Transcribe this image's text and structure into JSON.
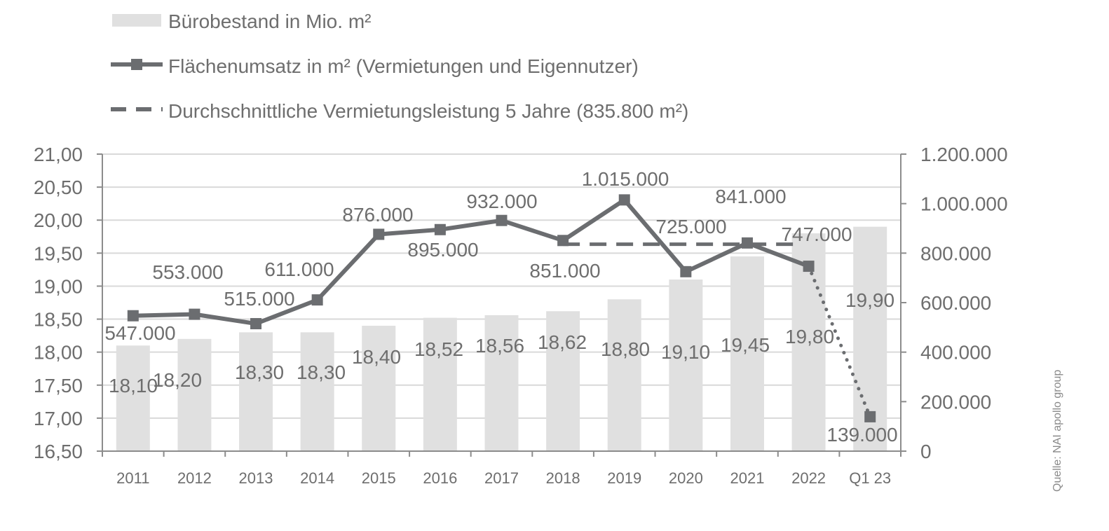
{
  "chart_data": {
    "type": "bar+line",
    "categories": [
      "2011",
      "2012",
      "2013",
      "2014",
      "2015",
      "2016",
      "2017",
      "2018",
      "2019",
      "2020",
      "2021",
      "2022",
      "Q1 23"
    ],
    "bar_series": {
      "name": "Bürobestand in Mio. m²",
      "values": [
        18.1,
        18.2,
        18.3,
        18.3,
        18.4,
        18.52,
        18.56,
        18.62,
        18.8,
        19.1,
        19.45,
        19.8,
        19.9
      ],
      "labels": [
        "18,10",
        "18,20",
        "18,30",
        "18,30",
        "18,40",
        "18,52",
        "18,56",
        "18,62",
        "18,80",
        "19,10",
        "19,45",
        "19,80",
        "19,90"
      ],
      "axis": "left",
      "color": "#e0e0e0"
    },
    "line_series": {
      "name": "Flächenumsatz in m² (Vermietungen und Eigennutzer)",
      "values": [
        547000,
        553000,
        515000,
        611000,
        876000,
        895000,
        932000,
        851000,
        1015000,
        725000,
        841000,
        747000,
        139000
      ],
      "labels": [
        "547.000",
        "553.000",
        "515.000",
        "611.000",
        "876.000",
        "895.000",
        "932.000",
        "851.000",
        "1.015.000",
        "725.000",
        "841.000",
        "747.000",
        "139.000"
      ],
      "axis": "right",
      "color": "#6b6d70",
      "dotted_from_index": 11
    },
    "avg_series": {
      "name": "Durchschnittliche Vermietungsleistung 5 Jahre (835.800 m²)",
      "value": 835800,
      "from_index": 7,
      "to_index": 11,
      "color": "#6b6d70"
    },
    "y_left": {
      "min": 16.5,
      "max": 21.0,
      "ticks": [
        16.5,
        17.0,
        17.5,
        18.0,
        18.5,
        19.0,
        19.5,
        20.0,
        20.5,
        21.0
      ],
      "tick_labels": [
        "16,50",
        "17,00",
        "17,50",
        "18,00",
        "18,50",
        "19,00",
        "19,50",
        "20,00",
        "20,50",
        "21,00"
      ]
    },
    "y_right": {
      "min": 0,
      "max": 1200000,
      "ticks": [
        0,
        200000,
        400000,
        600000,
        800000,
        1000000,
        1200000
      ],
      "tick_labels": [
        "0",
        "200.000",
        "400.000",
        "600.000",
        "800.000",
        "1.000.000",
        "1.200.000"
      ]
    },
    "grid": true,
    "legend_position": "top-left"
  },
  "source": "Quelle: NAI apollo group",
  "colors": {
    "bar": "#e0e0e0",
    "line": "#6b6d70",
    "grid": "#d9d9d9",
    "axis": "#8c8c8c",
    "text": "#6e6e6e"
  }
}
